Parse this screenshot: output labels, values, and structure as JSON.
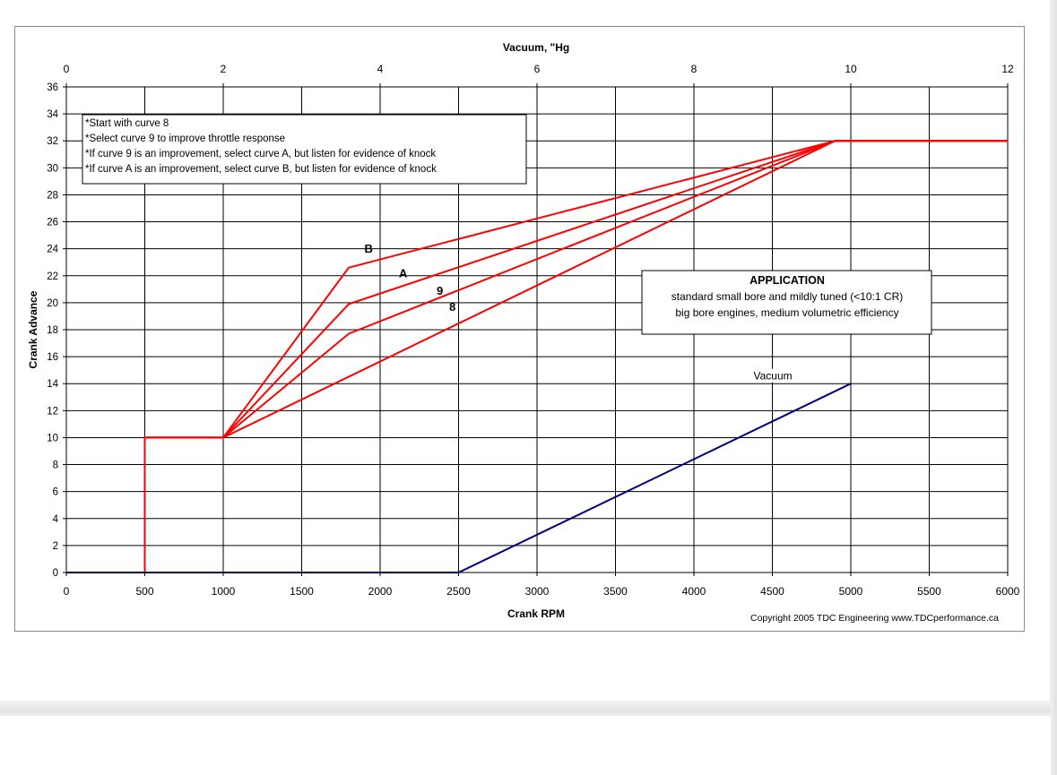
{
  "chart_data": {
    "type": "line",
    "title": "",
    "xlabel": "Crank RPM",
    "ylabel": "Crank Advance",
    "x2label": "Vacuum, \"Hg",
    "xlim": [
      0,
      6000
    ],
    "ylim": [
      0,
      36
    ],
    "x2lim": [
      0,
      12
    ],
    "x_ticks": [
      0,
      500,
      1000,
      1500,
      2000,
      2500,
      3000,
      3500,
      4000,
      4500,
      5000,
      5500,
      6000
    ],
    "y_ticks": [
      0,
      2,
      4,
      6,
      8,
      10,
      12,
      14,
      16,
      18,
      20,
      22,
      24,
      26,
      28,
      30,
      32,
      34,
      36
    ],
    "x2_ticks": [
      0,
      2,
      4,
      6,
      8,
      10,
      12
    ],
    "grid": true,
    "series": [
      {
        "name": "B",
        "axis": "bottom",
        "color": "#ff0000",
        "x": [
          0,
          500,
          500,
          1000,
          1800,
          4900,
          6000
        ],
        "y": [
          0,
          0,
          10,
          10,
          22.6,
          32,
          32
        ]
      },
      {
        "name": "A",
        "axis": "bottom",
        "color": "#ff0000",
        "x": [
          0,
          500,
          500,
          1000,
          1800,
          4900,
          6000
        ],
        "y": [
          0,
          0,
          10,
          10,
          19.9,
          32,
          32
        ]
      },
      {
        "name": "9",
        "axis": "bottom",
        "color": "#ff0000",
        "x": [
          0,
          500,
          500,
          1000,
          1800,
          4900,
          6000
        ],
        "y": [
          0,
          0,
          10,
          10,
          17.7,
          32,
          32
        ]
      },
      {
        "name": "8",
        "axis": "bottom",
        "color": "#ff0000",
        "x": [
          0,
          500,
          500,
          1000,
          4900,
          6000
        ],
        "y": [
          0,
          0,
          10,
          10,
          32,
          32
        ]
      },
      {
        "name": "Vacuum",
        "axis": "top",
        "color": "#00007f",
        "x": [
          0,
          5,
          10
        ],
        "y": [
          0,
          0,
          14
        ]
      }
    ],
    "curve_labels": [
      {
        "text": "B",
        "x": 1900,
        "y": 23.7
      },
      {
        "text": "A",
        "x": 2120,
        "y": 21.9
      },
      {
        "text": "9",
        "x": 2360,
        "y": 20.6
      },
      {
        "text": "8",
        "x": 2440,
        "y": 19.4
      },
      {
        "text": "Vacuum",
        "x": 4380,
        "y": 14.3
      }
    ],
    "notes_box": {
      "lines": [
        "*Start with curve 8",
        "*Select curve 9 to improve throttle response",
        "*If curve 9 is an improvement, select curve A, but listen for evidence of knock",
        "*If curve A is an improvement, select curve B, but listen for evidence of knock"
      ]
    },
    "application_box": {
      "title": "APPLICATION",
      "lines": [
        "standard small bore and mildly tuned (<10:1 CR)",
        "big bore engines, medium volumetric efficiency"
      ]
    },
    "copyright": "Copyright 2005 TDC Engineering www.TDCperformance.ca"
  }
}
